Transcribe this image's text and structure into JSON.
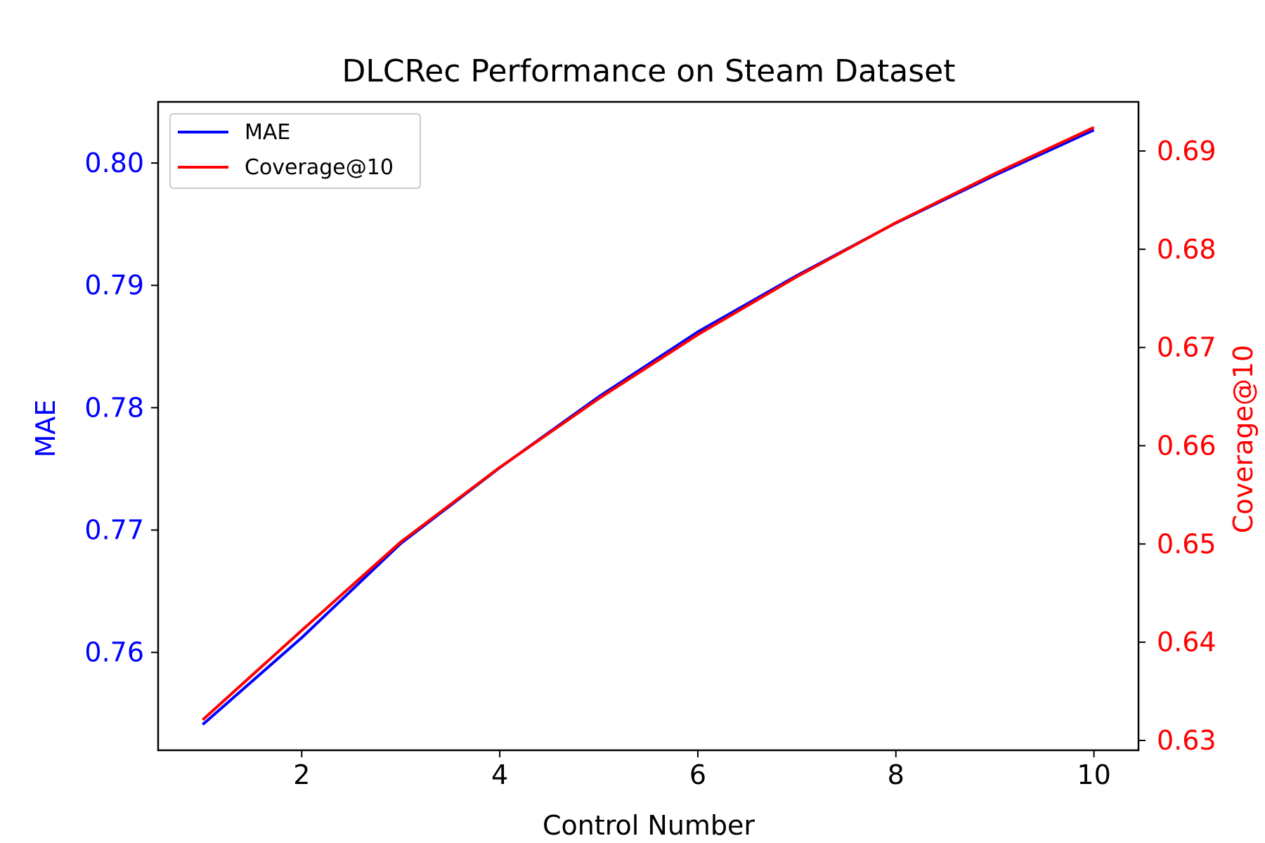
{
  "chart_data": {
    "type": "line",
    "title": "DLCRec Performance on Steam Dataset",
    "xlabel": "Control Number",
    "ylabel_left": "MAE",
    "ylabel_right": "Coverage@10",
    "x": [
      1,
      2,
      3,
      4,
      5,
      6,
      7,
      8,
      9,
      10
    ],
    "xlim": [
      0.55,
      10.45
    ],
    "xticks": [
      "2",
      "4",
      "6",
      "8",
      "10"
    ],
    "xtick_values": [
      2,
      4,
      6,
      8,
      10
    ],
    "ylim_left": [
      0.752,
      0.805
    ],
    "yticks_left": [
      "0.76",
      "0.77",
      "0.78",
      "0.79",
      "0.80"
    ],
    "ytick_values_left": [
      0.76,
      0.77,
      0.78,
      0.79,
      0.8
    ],
    "ylim_right": [
      0.629,
      0.695
    ],
    "yticks_right": [
      "0.63",
      "0.64",
      "0.65",
      "0.66",
      "0.67",
      "0.68",
      "0.69"
    ],
    "ytick_values_right": [
      0.63,
      0.64,
      0.65,
      0.66,
      0.67,
      0.68,
      0.69
    ],
    "grid": false,
    "legend_position": "top-left",
    "series": [
      {
        "name": "MAE",
        "axis": "left",
        "color": "#0000ff",
        "values": [
          0.7541,
          0.7612,
          0.7689,
          0.7751,
          0.7809,
          0.7862,
          0.7908,
          0.7951,
          0.799,
          0.8027
        ]
      },
      {
        "name": "Coverage@10",
        "axis": "right",
        "color": "#ff0000",
        "values": [
          0.6321,
          0.6412,
          0.6502,
          0.6578,
          0.6648,
          0.6713,
          0.6772,
          0.6827,
          0.6877,
          0.6924
        ]
      }
    ],
    "left_axis_color": "#0000ff",
    "right_axis_color": "#ff0000"
  }
}
